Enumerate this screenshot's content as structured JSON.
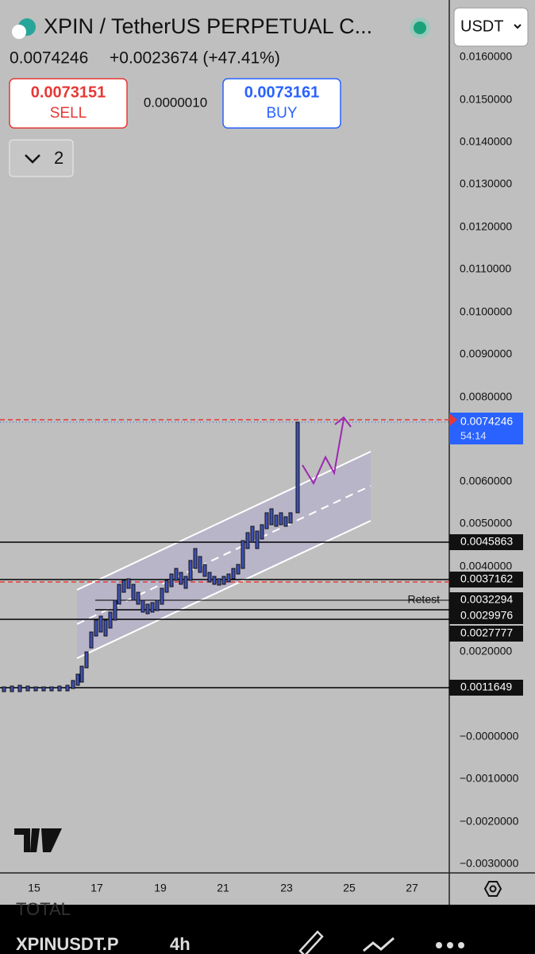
{
  "header": {
    "title": "XPIN / TetherUS PERPETUAL C...",
    "price": "0.0074246",
    "change": "+0.0023674 (+47.41%)",
    "sell_price": "0.0073151",
    "sell_label": "SELL",
    "spread": "0.0000010",
    "buy_price": "0.0073161",
    "buy_label": "BUY",
    "indicators_count": "2",
    "currency": "USDT"
  },
  "price_axis": [
    "0.0160000",
    "0.0150000",
    "0.0140000",
    "0.0130000",
    "0.0120000",
    "0.0110000",
    "0.0100000",
    "0.0090000",
    "0.0080000",
    "0.0060000",
    "0.0050000",
    "0.0040000",
    "0.0020000",
    "−0.0000000",
    "−0.0010000",
    "−0.0020000",
    "−0.0030000"
  ],
  "current": {
    "price": "0.0074246",
    "countdown": "54:14"
  },
  "levels": [
    "0.0045863",
    "0.0037162",
    "0.0032294",
    "0.0029976",
    "0.0027777",
    "0.0011649"
  ],
  "annotation": "Retest",
  "time_axis": [
    "15",
    "17",
    "19",
    "21",
    "23",
    "25",
    "27"
  ],
  "footer": {
    "indicator": "TOTAL",
    "symbol": "XPINUSDT.P",
    "interval": "4h"
  }
}
